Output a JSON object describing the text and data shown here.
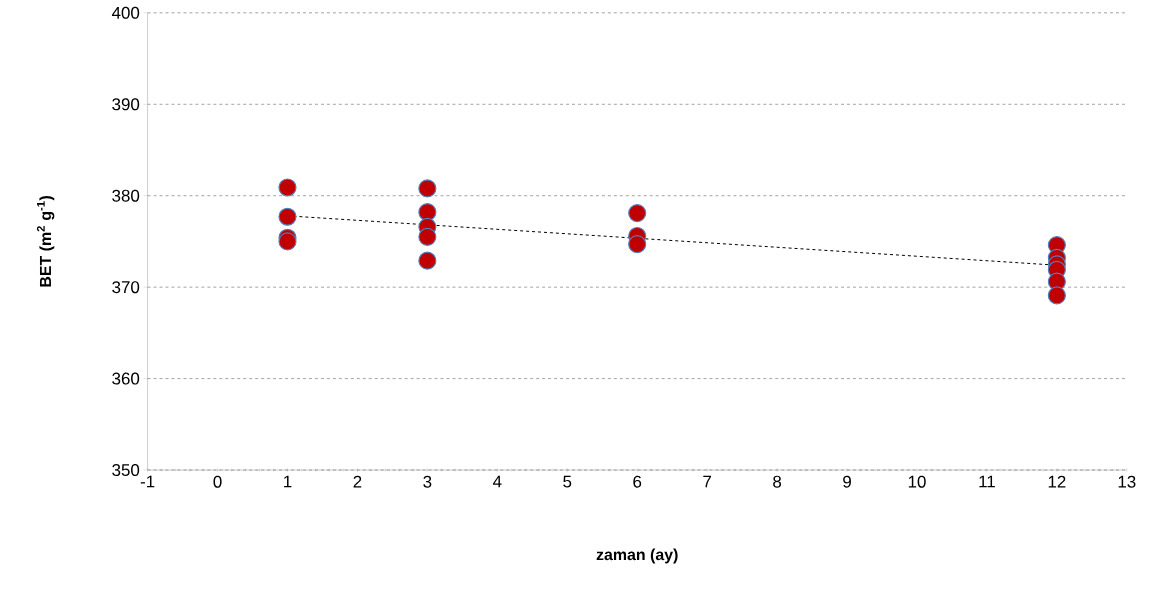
{
  "chart_data": {
    "type": "scatter",
    "xlabel": "zaman (ay)",
    "ylabel": "BET (m$^{2}$ g$^{-1}$)",
    "xlim": [
      -1,
      13
    ],
    "xticks": [
      -1,
      0,
      1,
      2,
      3,
      4,
      5,
      6,
      7,
      8,
      9,
      10,
      11,
      12,
      13
    ],
    "ylim": [
      350,
      400
    ],
    "yticks": [
      350,
      360,
      370,
      380,
      390,
      400
    ],
    "grid": "y",
    "series": [
      {
        "color": "#c00000",
        "marker": "circle",
        "x": [
          1,
          1,
          1,
          1,
          3,
          3,
          3,
          3,
          3,
          6,
          6,
          6,
          12,
          12,
          12,
          12,
          12,
          12
        ],
        "values": [
          380.9,
          377.7,
          375.4,
          375.0,
          380.8,
          378.2,
          376.6,
          375.5,
          372.9,
          378.1,
          375.6,
          374.7,
          374.6,
          373.2,
          372.5,
          371.9,
          370.6,
          369.1
        ]
      },
      {
        "type": "line",
        "color": "#000000",
        "line_style": "dashed",
        "marker": "none",
        "x": [
          1,
          12
        ],
        "values": [
          377.8,
          372.4
        ]
      }
    ]
  }
}
